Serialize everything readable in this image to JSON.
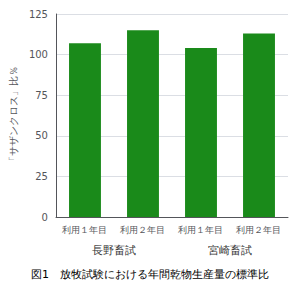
{
  "chart_data": {
    "type": "bar",
    "title": "図1　放牧試験における年間乾物生産量の標準比",
    "categories": [
      "利用１年目",
      "利用２年目",
      "利用１年目",
      "利用２年目"
    ],
    "values": [
      107,
      115,
      104,
      113
    ],
    "color": "#1a8a1a",
    "group_labels": [
      "長野畜試",
      "宮崎畜試"
    ],
    "ylabel": "「サザンクロス」比％",
    "ylim": [
      0,
      125
    ],
    "yticks": [
      0,
      25,
      50,
      75,
      100,
      125
    ],
    "grid": true
  }
}
